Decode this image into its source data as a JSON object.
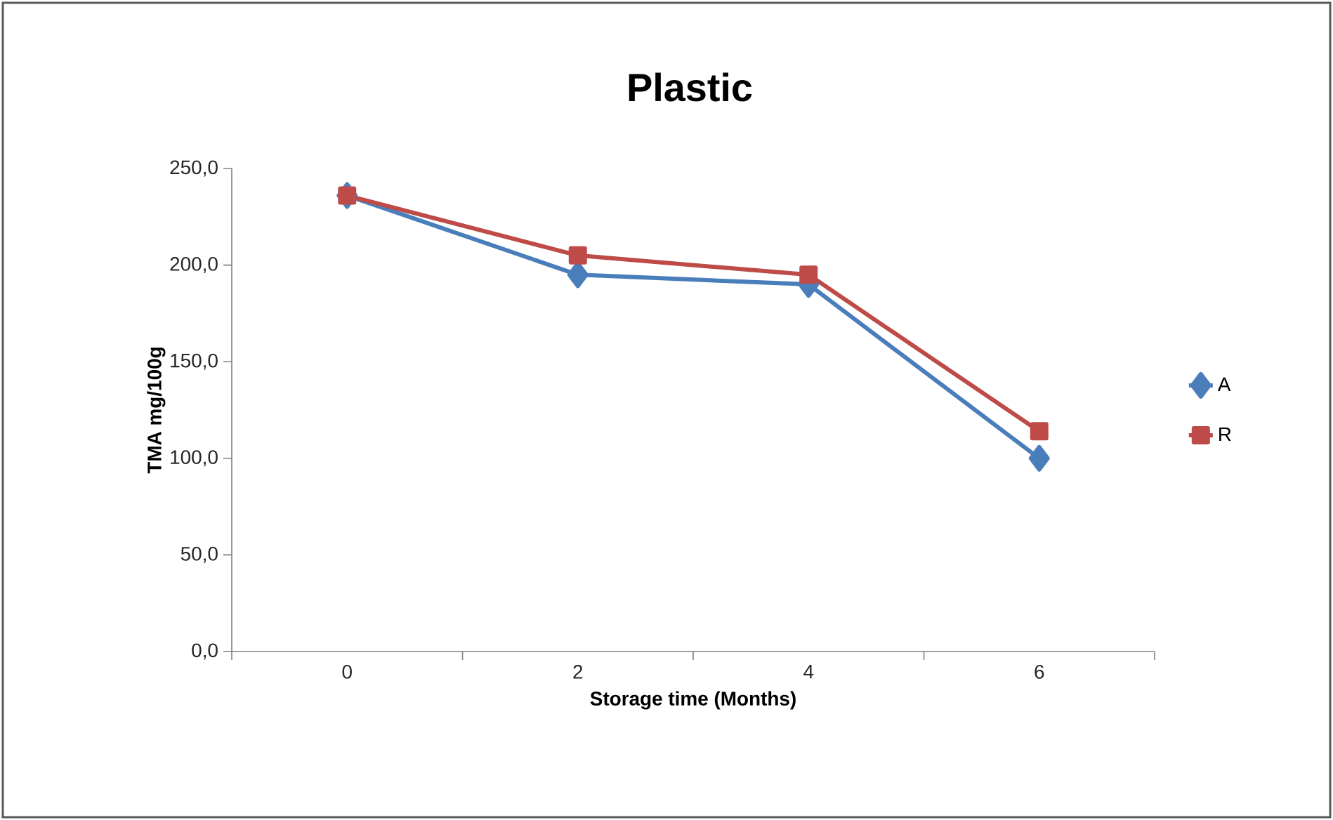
{
  "chart_data": {
    "type": "line",
    "title": "Plastic",
    "xlabel": "Storage time (Months)",
    "ylabel": "TMA mg/100g",
    "categories": [
      "0",
      "2",
      "4",
      "6"
    ],
    "series": [
      {
        "name": "A",
        "color": "#4a7ebb",
        "marker": "diamond",
        "values": [
          236,
          195,
          190,
          100
        ]
      },
      {
        "name": "R",
        "color": "#be4b48",
        "marker": "square",
        "values": [
          236,
          205,
          195,
          114
        ]
      }
    ],
    "ylim": [
      0,
      250
    ],
    "yticks": [
      {
        "value": 0,
        "label": "0,0"
      },
      {
        "value": 50,
        "label": "50,0"
      },
      {
        "value": 100,
        "label": "100,0"
      },
      {
        "value": 150,
        "label": "150,0"
      },
      {
        "value": 200,
        "label": "200,0"
      },
      {
        "value": 250,
        "label": "250,0"
      }
    ],
    "grid": false,
    "legend": "right",
    "line_style": "solid"
  }
}
